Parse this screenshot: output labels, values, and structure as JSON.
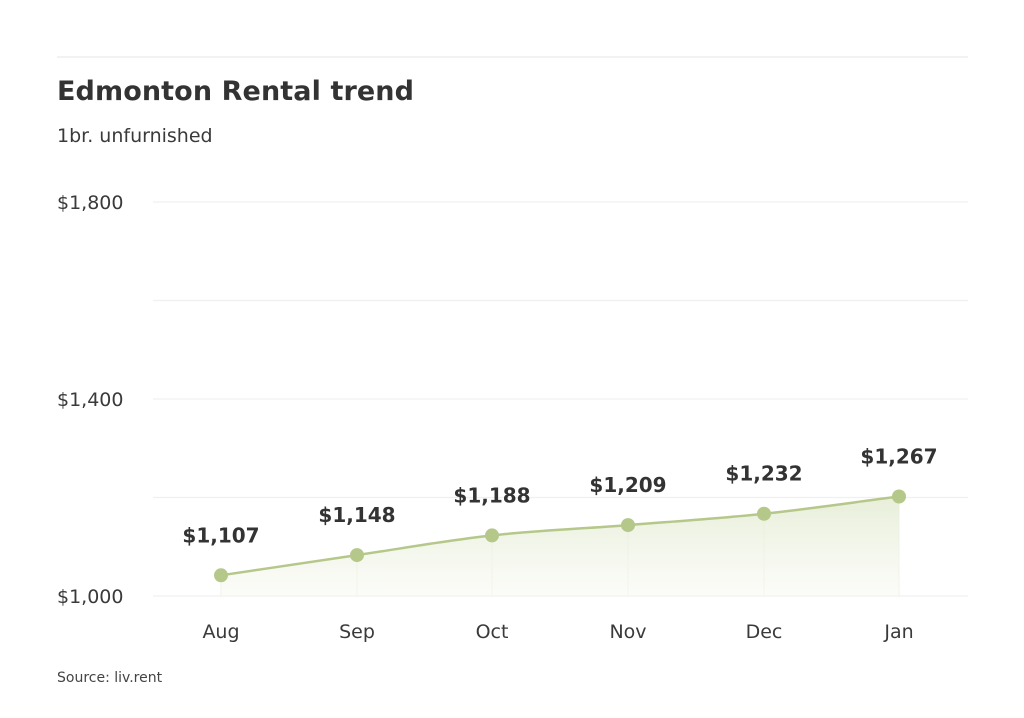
{
  "header": {
    "title": "Edmonton Rental trend",
    "subtitle": "1br. unfurnished"
  },
  "footer": {
    "source": "Source: liv.rent"
  },
  "colors": {
    "line": "#b5c88a",
    "marker": "#b5c88a",
    "area_top": "#e8efd9",
    "grid": "#f0f0f0",
    "text": "#333333"
  },
  "chart_data": {
    "type": "area",
    "title": "Edmonton Rental trend",
    "subtitle": "1br. unfurnished",
    "categories": [
      "Aug",
      "Sep",
      "Oct",
      "Nov",
      "Dec",
      "Jan"
    ],
    "series": [
      {
        "name": "1br. unfurnished",
        "values": [
          1107,
          1148,
          1188,
          1209,
          1232,
          1267
        ],
        "labels": [
          "$1,107",
          "$1,148",
          "$1,188",
          "$1,209",
          "$1,232",
          "$1,267"
        ]
      }
    ],
    "xlabel": "",
    "ylabel": "",
    "ylim": [
      1000,
      1800
    ],
    "yticks": [
      1000,
      1400,
      1800
    ],
    "ytick_labels": [
      "$1,000",
      "$1,400",
      "$1,800"
    ],
    "gridlines": [
      1000,
      1200,
      1400,
      1600,
      1800
    ],
    "grid": true,
    "legend": "none",
    "source": "Source: liv.rent"
  }
}
